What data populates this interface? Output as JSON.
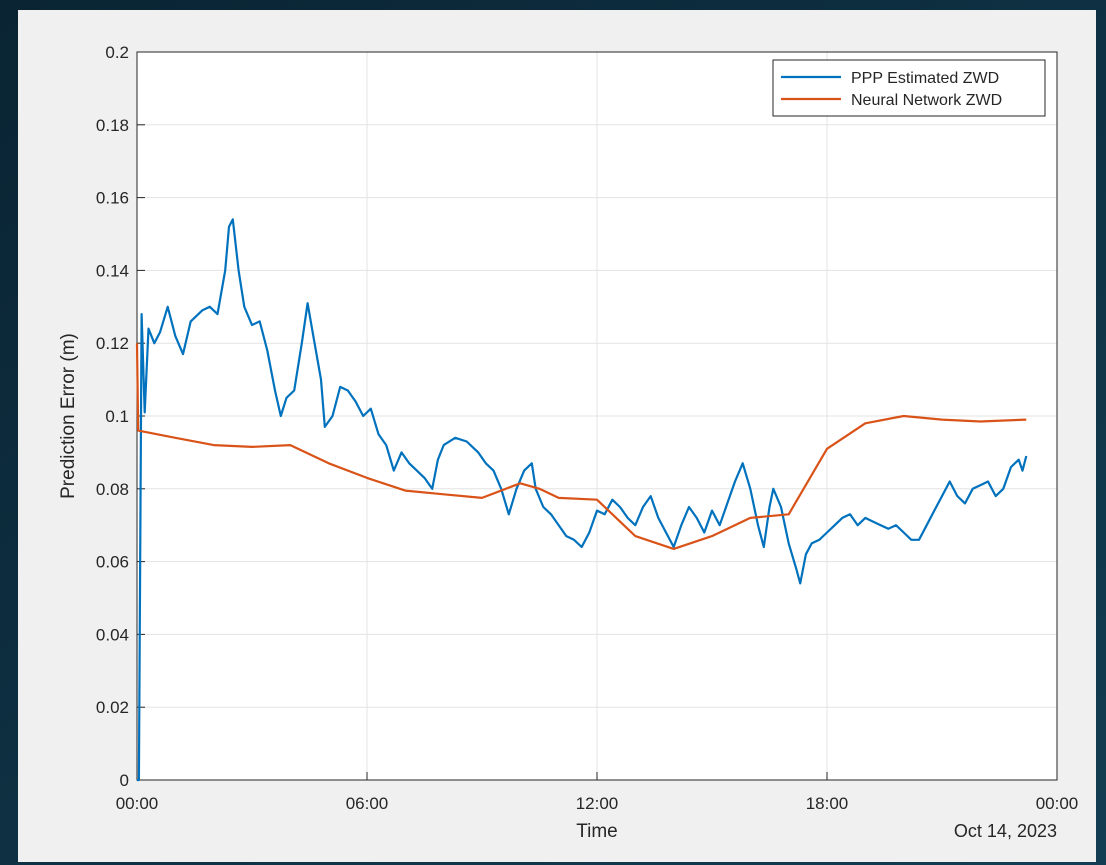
{
  "chart_data": {
    "type": "line",
    "xlabel": "Time",
    "ylabel": "Prediction Error (m)",
    "x_annotation": "Oct 14, 2023",
    "xlim": [
      0,
      24
    ],
    "xticks": [
      {
        "value": 0,
        "label": "00:00"
      },
      {
        "value": 6,
        "label": "06:00"
      },
      {
        "value": 12,
        "label": "12:00"
      },
      {
        "value": 18,
        "label": "18:00"
      },
      {
        "value": 24,
        "label": "00:00"
      }
    ],
    "ylim": [
      0,
      0.2
    ],
    "yticks": [
      0,
      0.02,
      0.04,
      0.06,
      0.08,
      0.1,
      0.12,
      0.14,
      0.16,
      0.18,
      0.2
    ],
    "grid": true,
    "legend": "northeast",
    "series": [
      {
        "name": "PPP Estimated ZWD",
        "color": "#0072bd",
        "x": [
          0,
          0.05,
          0.12,
          0.2,
          0.3,
          0.45,
          0.6,
          0.8,
          1.0,
          1.2,
          1.4,
          1.7,
          1.9,
          2.1,
          2.3,
          2.4,
          2.5,
          2.65,
          2.8,
          3.0,
          3.2,
          3.4,
          3.6,
          3.75,
          3.9,
          4.1,
          4.3,
          4.45,
          4.6,
          4.8,
          4.9,
          5.1,
          5.3,
          5.5,
          5.7,
          5.9,
          6.1,
          6.3,
          6.5,
          6.7,
          6.9,
          7.1,
          7.3,
          7.5,
          7.7,
          7.85,
          8.0,
          8.3,
          8.6,
          8.9,
          9.1,
          9.3,
          9.5,
          9.7,
          9.9,
          10.1,
          10.3,
          10.4,
          10.6,
          10.8,
          11.0,
          11.2,
          11.4,
          11.6,
          11.8,
          12.0,
          12.2,
          12.4,
          12.6,
          12.8,
          13.0,
          13.2,
          13.4,
          13.6,
          13.8,
          14.0,
          14.2,
          14.4,
          14.6,
          14.8,
          15.0,
          15.2,
          15.4,
          15.6,
          15.8,
          16.0,
          16.2,
          16.35,
          16.5,
          16.6,
          16.8,
          17.0,
          17.2,
          17.3,
          17.45,
          17.6,
          17.8,
          18.0,
          18.2,
          18.4,
          18.6,
          18.8,
          19.0,
          19.2,
          19.4,
          19.6,
          19.8,
          20.0,
          20.2,
          20.4,
          20.6,
          20.8,
          21.0,
          21.2,
          21.4,
          21.6,
          21.8,
          22.0,
          22.2,
          22.4,
          22.6,
          22.8,
          23.0,
          23.1,
          23.2
        ],
        "values": [
          0,
          0,
          0.128,
          0.101,
          0.124,
          0.12,
          0.123,
          0.13,
          0.122,
          0.117,
          0.126,
          0.129,
          0.13,
          0.128,
          0.14,
          0.152,
          0.154,
          0.14,
          0.13,
          0.125,
          0.126,
          0.118,
          0.107,
          0.1,
          0.105,
          0.107,
          0.12,
          0.131,
          0.122,
          0.11,
          0.097,
          0.1,
          0.108,
          0.107,
          0.104,
          0.1,
          0.102,
          0.095,
          0.092,
          0.085,
          0.09,
          0.087,
          0.085,
          0.083,
          0.08,
          0.088,
          0.092,
          0.094,
          0.093,
          0.09,
          0.087,
          0.085,
          0.08,
          0.073,
          0.08,
          0.085,
          0.087,
          0.08,
          0.075,
          0.073,
          0.07,
          0.067,
          0.066,
          0.064,
          0.068,
          0.074,
          0.073,
          0.077,
          0.075,
          0.072,
          0.07,
          0.075,
          0.078,
          0.072,
          0.068,
          0.064,
          0.07,
          0.075,
          0.072,
          0.068,
          0.074,
          0.07,
          0.076,
          0.082,
          0.087,
          0.08,
          0.07,
          0.064,
          0.075,
          0.08,
          0.075,
          0.065,
          0.058,
          0.054,
          0.062,
          0.065,
          0.066,
          0.068,
          0.07,
          0.072,
          0.073,
          0.07,
          0.072,
          0.071,
          0.07,
          0.069,
          0.07,
          0.068,
          0.066,
          0.066,
          0.07,
          0.074,
          0.078,
          0.082,
          0.078,
          0.076,
          0.08,
          0.081,
          0.082,
          0.078,
          0.08,
          0.086,
          0.088,
          0.085,
          0.089
        ]
      },
      {
        "name": "Neural Network ZWD",
        "color": "#d95319",
        "x": [
          0,
          0.03,
          1,
          2,
          3,
          4,
          5,
          6,
          7,
          8,
          9,
          10,
          10.5,
          11,
          12,
          12.5,
          13,
          14,
          15,
          16,
          17,
          18,
          19,
          20,
          21,
          22,
          23.2
        ],
        "values": [
          0.12,
          0.096,
          0.094,
          0.092,
          0.0915,
          0.092,
          0.087,
          0.083,
          0.0795,
          0.0785,
          0.0775,
          0.0815,
          0.08,
          0.0775,
          0.077,
          0.072,
          0.067,
          0.0635,
          0.067,
          0.072,
          0.073,
          0.091,
          0.098,
          0.1,
          0.099,
          0.0985,
          0.099
        ]
      }
    ]
  }
}
